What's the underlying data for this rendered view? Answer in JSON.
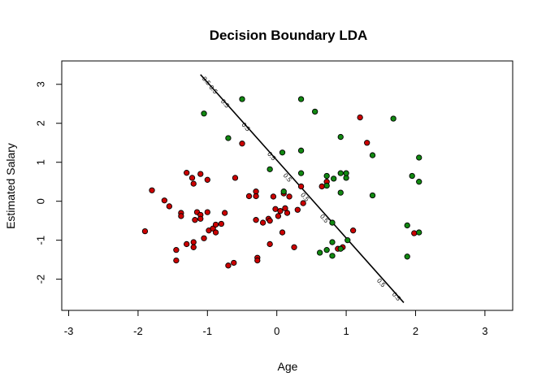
{
  "chart_data": {
    "type": "scatter",
    "title": "Decision Boundary LDA",
    "xlabel": "Age",
    "ylabel": "Estimated Salary",
    "xlim": [
      -3.1,
      3.4
    ],
    "ylim": [
      -2.8,
      3.6
    ],
    "xticks": [
      -3,
      -2,
      -1,
      0,
      1,
      2,
      3
    ],
    "yticks": [
      -2,
      -1,
      0,
      1,
      2,
      3
    ],
    "xtick_labels": [
      "-3",
      "-2",
      "-1",
      "0",
      "1",
      "2",
      "3"
    ],
    "ytick_labels": [
      "-2",
      "-1",
      "0",
      "1",
      "2",
      "3"
    ],
    "grid": false,
    "legend": "none",
    "colors": {
      "class0": "#cc0000",
      "class1": "#118811",
      "boundary": "#000000"
    },
    "boundary": {
      "points": [
        [
          -1.1,
          3.25
        ],
        [
          1.83,
          -2.6
        ]
      ],
      "contour_labels": [
        {
          "x": -1.02,
          "y": 3.08,
          "text": "0.5"
        },
        {
          "x": -0.92,
          "y": 2.86,
          "text": "0.5"
        },
        {
          "x": -0.75,
          "y": 2.5,
          "text": "0.5"
        },
        {
          "x": -0.45,
          "y": 1.9,
          "text": "0.5"
        },
        {
          "x": -0.08,
          "y": 1.15,
          "text": "0.5"
        },
        {
          "x": 0.15,
          "y": 0.6,
          "text": "0.5"
        },
        {
          "x": 0.4,
          "y": 0.1,
          "text": "0.5"
        },
        {
          "x": 0.68,
          "y": -0.45,
          "text": "0.5"
        },
        {
          "x": 1.5,
          "y": -2.1,
          "text": "0.5"
        },
        {
          "x": 1.72,
          "y": -2.45,
          "text": "0.5"
        }
      ]
    },
    "series": [
      {
        "class": "0",
        "color": "#cc0000",
        "points": [
          [
            -1.9,
            -0.77
          ],
          [
            -1.8,
            0.28
          ],
          [
            -1.62,
            0.02
          ],
          [
            -1.55,
            -0.13
          ],
          [
            -1.45,
            -1.25
          ],
          [
            -1.45,
            -1.52
          ],
          [
            -1.38,
            -0.3
          ],
          [
            -1.38,
            -0.38
          ],
          [
            -1.3,
            0.73
          ],
          [
            -1.3,
            -1.1
          ],
          [
            -1.22,
            0.6
          ],
          [
            -1.2,
            0.45
          ],
          [
            -1.2,
            -1.05
          ],
          [
            -1.2,
            -1.18
          ],
          [
            -1.18,
            -0.48
          ],
          [
            -1.15,
            -0.28
          ],
          [
            -1.1,
            0.7
          ],
          [
            -1.1,
            -0.35
          ],
          [
            -1.1,
            -0.45
          ],
          [
            -1.05,
            -0.95
          ],
          [
            -1.0,
            0.55
          ],
          [
            -1.0,
            -0.28
          ],
          [
            -0.98,
            -0.75
          ],
          [
            -0.92,
            -0.7
          ],
          [
            -0.88,
            -0.6
          ],
          [
            -0.88,
            -0.8
          ],
          [
            -0.8,
            -0.58
          ],
          [
            -0.75,
            -0.3
          ],
          [
            -0.7,
            -1.65
          ],
          [
            -0.62,
            -1.58
          ],
          [
            -0.6,
            0.6
          ],
          [
            -0.5,
            1.48
          ],
          [
            -0.4,
            0.13
          ],
          [
            -0.3,
            0.25
          ],
          [
            -0.3,
            0.13
          ],
          [
            -0.3,
            -0.48
          ],
          [
            -0.28,
            -1.45
          ],
          [
            -0.28,
            -1.52
          ],
          [
            -0.2,
            -0.55
          ],
          [
            -0.12,
            -0.45
          ],
          [
            -0.1,
            -0.5
          ],
          [
            -0.1,
            -1.1
          ],
          [
            -0.05,
            0.12
          ],
          [
            -0.02,
            -0.2
          ],
          [
            0.02,
            -0.38
          ],
          [
            0.05,
            -0.25
          ],
          [
            0.08,
            -0.8
          ],
          [
            0.1,
            0.2
          ],
          [
            0.12,
            -0.18
          ],
          [
            0.15,
            -0.3
          ],
          [
            0.18,
            0.12
          ],
          [
            0.25,
            -1.18
          ],
          [
            0.3,
            -0.22
          ],
          [
            0.35,
            0.38
          ],
          [
            0.38,
            -0.05
          ],
          [
            0.65,
            0.38
          ],
          [
            0.72,
            0.5
          ],
          [
            1.1,
            -0.75
          ],
          [
            1.2,
            2.15
          ],
          [
            1.3,
            1.5
          ],
          [
            1.98,
            -0.82
          ],
          [
            0.95,
            -1.18
          ],
          [
            0.88,
            -1.22
          ]
        ]
      },
      {
        "class": "1",
        "color": "#118811",
        "points": [
          [
            -1.05,
            2.25
          ],
          [
            -0.5,
            2.62
          ],
          [
            -0.7,
            1.62
          ],
          [
            -0.1,
            0.82
          ],
          [
            0.08,
            1.25
          ],
          [
            0.1,
            0.25
          ],
          [
            0.35,
            2.62
          ],
          [
            0.35,
            1.3
          ],
          [
            0.35,
            0.72
          ],
          [
            0.55,
            2.3
          ],
          [
            0.72,
            0.65
          ],
          [
            0.72,
            0.4
          ],
          [
            0.82,
            0.58
          ],
          [
            0.92,
            1.65
          ],
          [
            0.92,
            0.72
          ],
          [
            0.92,
            0.22
          ],
          [
            1.0,
            0.6
          ],
          [
            1.0,
            0.72
          ],
          [
            1.38,
            1.18
          ],
          [
            1.38,
            0.15
          ],
          [
            1.68,
            2.12
          ],
          [
            2.05,
            1.12
          ],
          [
            1.95,
            0.65
          ],
          [
            2.05,
            0.5
          ],
          [
            1.88,
            -0.62
          ],
          [
            2.05,
            -0.8
          ],
          [
            1.88,
            -1.42
          ],
          [
            0.8,
            -0.55
          ],
          [
            0.8,
            -1.05
          ],
          [
            0.8,
            -1.4
          ],
          [
            0.72,
            -1.25
          ],
          [
            0.62,
            -1.32
          ],
          [
            0.92,
            -1.22
          ],
          [
            1.02,
            -1.0
          ]
        ]
      }
    ]
  }
}
